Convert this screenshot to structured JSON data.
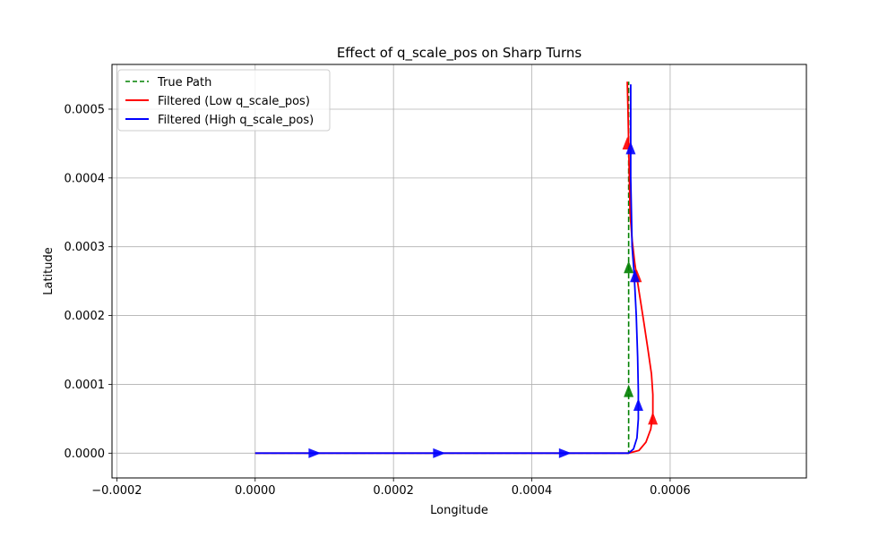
{
  "chart_data": {
    "type": "line",
    "title": "Effect of q_scale_pos on Sharp Turns",
    "xlabel": "Longitude",
    "ylabel": "Latitude",
    "xlim": [
      -0.000207,
      0.000797
    ],
    "ylim": [
      -3.6e-05,
      0.000565
    ],
    "grid": true,
    "legend_position": "top-left",
    "x_ticks": [
      -0.0002,
      0.0,
      0.0002,
      0.0004,
      0.0006
    ],
    "x_tick_labels": [
      "−0.0002",
      "0.0000",
      "0.0002",
      "0.0004",
      "0.0006"
    ],
    "y_ticks": [
      0.0,
      0.0001,
      0.0002,
      0.0003,
      0.0004,
      0.0005
    ],
    "y_tick_labels": [
      "0.0000",
      "0.0001",
      "0.0002",
      "0.0003",
      "0.0004",
      "0.0005"
    ],
    "series": [
      {
        "name": "True Path",
        "legend_label": "True Path",
        "color": "#008000",
        "style": "dashed",
        "points": [
          [
            0.0,
            0.0
          ],
          [
            0.00054,
            0.0
          ],
          [
            0.00054,
            0.00054
          ]
        ],
        "arrows": [
          [
            0.00054,
            8.8e-05
          ],
          [
            0.00054,
            0.000268
          ]
        ]
      },
      {
        "name": "Filtered (Low q_scale_pos)",
        "legend_label": "Filtered (Low q_scale_pos)",
        "color": "#ff0000",
        "style": "solid",
        "points": [
          [
            0.0,
            0.0
          ],
          [
            0.00054,
            0.0
          ],
          [
            0.000555,
            4e-06
          ],
          [
            0.000565,
            1.6e-05
          ],
          [
            0.000572,
            3.5e-05
          ],
          [
            0.000575,
            5.8e-05
          ],
          [
            0.000575,
            8.5e-05
          ],
          [
            0.000573,
            0.000115
          ],
          [
            0.000568,
            0.00015
          ],
          [
            0.000562,
            0.00019
          ],
          [
            0.000555,
            0.000235
          ],
          [
            0.000549,
            0.000275
          ],
          [
            0.000545,
            0.00031
          ],
          [
            0.000542,
            0.00035
          ],
          [
            0.000541,
            0.0004
          ],
          [
            0.00054,
            0.00045
          ],
          [
            0.000539,
            0.0005
          ],
          [
            0.000538,
            0.00054
          ]
        ],
        "arrows": [
          [
            0.000575,
            4.8e-05
          ],
          [
            0.000552,
            0.000255
          ],
          [
            0.000538,
            0.000448
          ]
        ]
      },
      {
        "name": "Filtered (High q_scale_pos)",
        "legend_label": "Filtered (High q_scale_pos)",
        "color": "#0000ff",
        "style": "solid",
        "points": [
          [
            0.0,
            0.0
          ],
          [
            0.00054,
            0.0
          ],
          [
            0.000547,
            6e-06
          ],
          [
            0.000552,
            2.2e-05
          ],
          [
            0.000554,
            5e-05
          ],
          [
            0.000554,
            9e-05
          ],
          [
            0.000553,
            0.00014
          ],
          [
            0.000551,
            0.0002
          ],
          [
            0.000548,
            0.00026
          ],
          [
            0.000545,
            0.0003
          ],
          [
            0.000544,
            0.00035
          ],
          [
            0.000543,
            0.0004
          ],
          [
            0.000543,
            0.00045
          ],
          [
            0.000543,
            0.0005
          ],
          [
            0.000543,
            0.000536
          ]
        ],
        "arrows": [
          [
            8.5e-05,
            0.0
          ],
          [
            0.000265,
            0.0
          ],
          [
            0.000447,
            0.0
          ],
          [
            0.000554,
            6.8e-05
          ],
          [
            0.000549,
            0.000255
          ],
          [
            0.000543,
            0.000441
          ]
        ]
      }
    ]
  }
}
